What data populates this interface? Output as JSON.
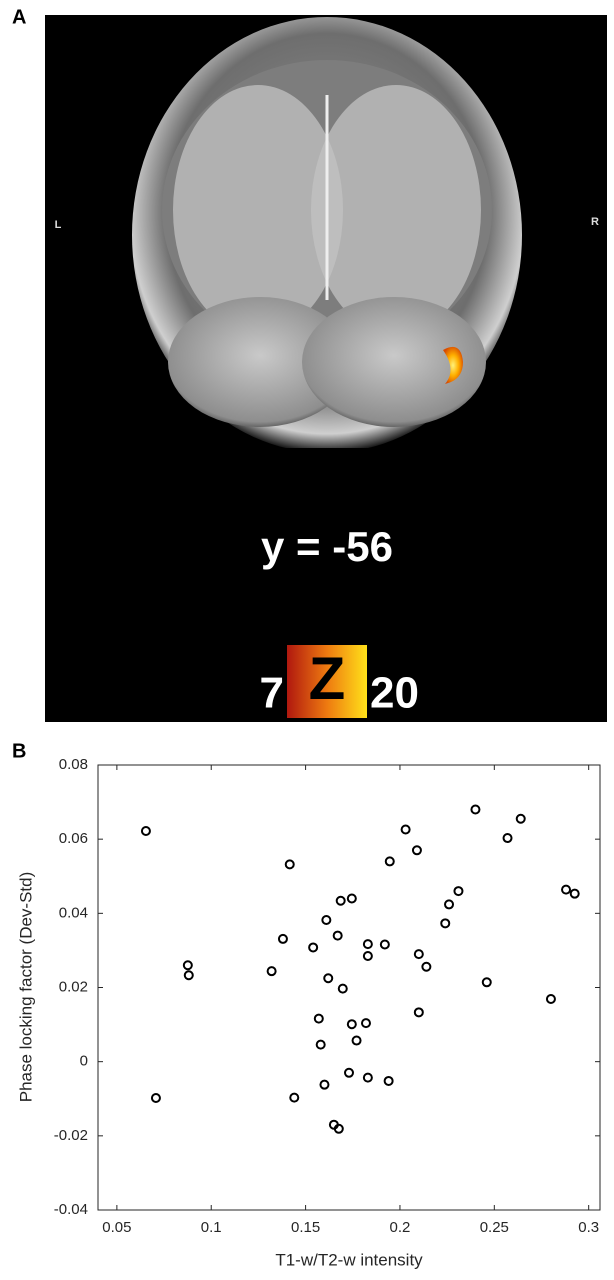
{
  "panel_a": {
    "panel_label": "A",
    "left_label": "L",
    "right_label": "R",
    "slice": "y = -56",
    "colorbar": {
      "min": 7,
      "label": "Z",
      "max": 20
    }
  },
  "chart_data": {
    "type": "scatter",
    "panel_label": "B",
    "xlabel": "T1-w/T2-w intensity",
    "ylabel": "Phase locking factor (Dev-Std)",
    "x": [
      0.0654,
      0.0707,
      0.0876,
      0.0881,
      0.132,
      0.138,
      0.1416,
      0.144,
      0.154,
      0.157,
      0.158,
      0.16,
      0.161,
      0.162,
      0.165,
      0.167,
      0.1676,
      0.1686,
      0.1697,
      0.173,
      0.1745,
      0.1745,
      0.177,
      0.182,
      0.183,
      0.183,
      0.183,
      0.192,
      0.194,
      0.1946,
      0.203,
      0.209,
      0.21,
      0.21,
      0.214,
      0.224,
      0.226,
      0.231,
      0.24,
      0.246,
      0.257,
      0.264,
      0.28,
      0.288,
      0.2926
    ],
    "values": [
      0.0622,
      -0.0098,
      0.026,
      0.0233,
      0.0244,
      0.0331,
      0.0532,
      -0.0097,
      0.0308,
      0.0116,
      0.0046,
      -0.0062,
      0.0382,
      0.0225,
      -0.017,
      0.034,
      -0.0181,
      0.0434,
      0.0197,
      -0.003,
      0.044,
      0.0101,
      0.0057,
      0.0104,
      0.0317,
      0.0285,
      -0.0043,
      0.0316,
      -0.0052,
      0.054,
      0.0626,
      0.057,
      0.029,
      0.0133,
      0.0256,
      0.0373,
      0.0424,
      0.046,
      0.068,
      0.0214,
      0.0603,
      0.0655,
      0.0169,
      0.0464,
      0.0453
    ],
    "color": "#000000",
    "xlim": [
      0.04,
      0.306
    ],
    "ylim": [
      -0.04,
      0.08
    ],
    "xticks": [
      0.05,
      0.1,
      0.15,
      0.2,
      0.25,
      0.3
    ],
    "yticks": [
      -0.04,
      -0.02,
      0,
      0.02,
      0.04,
      0.06,
      0.08
    ]
  }
}
